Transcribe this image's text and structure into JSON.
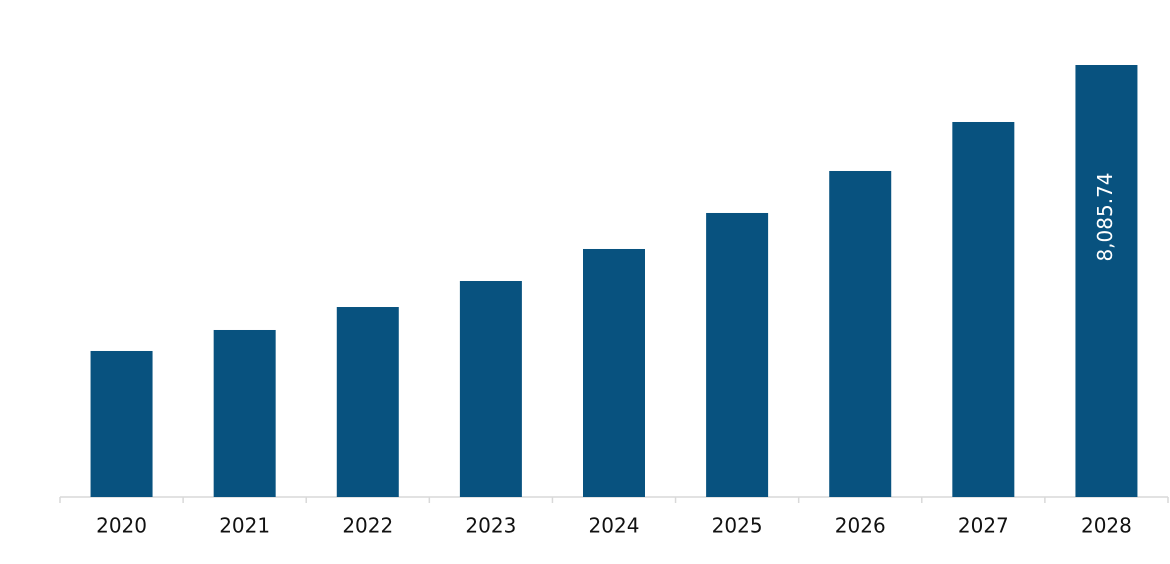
{
  "chart_data": {
    "type": "bar",
    "categories": [
      "2020",
      "2021",
      "2022",
      "2023",
      "2024",
      "2025",
      "2026",
      "2027",
      "2028"
    ],
    "values": [
      2733,
      3126,
      3556,
      4043,
      4642,
      5316,
      6102,
      7019,
      8085.74
    ],
    "value_labels": [
      null,
      null,
      null,
      null,
      null,
      null,
      null,
      null,
      "8,085.74"
    ],
    "color": "#08527f"
  }
}
